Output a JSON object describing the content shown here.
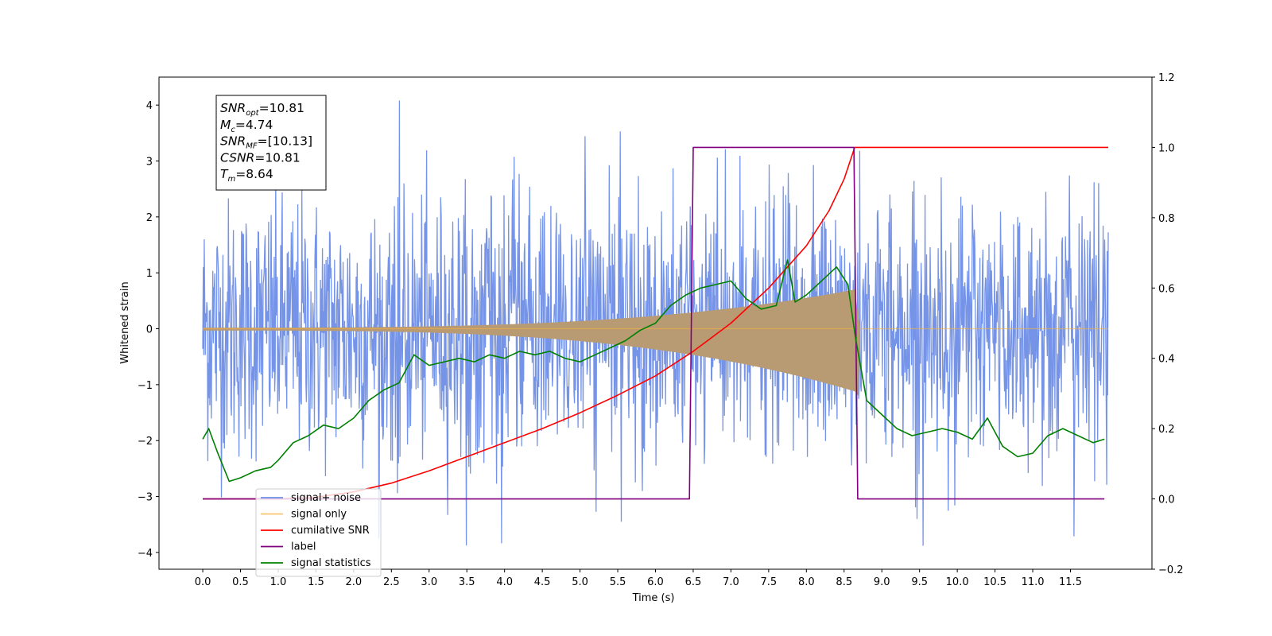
{
  "chart_data": {
    "type": "line",
    "xlabel": "Time (s)",
    "ylabel": "Whitened strain",
    "y2label": "",
    "xlim": [
      -0.58,
      12.58
    ],
    "ylim": [
      -4.3,
      4.5
    ],
    "y2lim": [
      -0.2,
      1.2
    ],
    "xticks": [
      0.0,
      0.5,
      1.0,
      1.5,
      2.0,
      2.5,
      3.0,
      3.5,
      4.0,
      4.5,
      5.0,
      5.5,
      6.0,
      6.5,
      7.0,
      7.5,
      8.0,
      8.5,
      9.0,
      9.5,
      10.0,
      10.5,
      11.0,
      11.5
    ],
    "xtick_labels": [
      "0.0",
      "0.5",
      "1.0",
      "1.5",
      "2.0",
      "2.5",
      "3.0",
      "3.5",
      "4.0",
      "4.5",
      "5.0",
      "5.5",
      "6.0",
      "6.5",
      "7.0",
      "7.5",
      "8.0",
      "8.5",
      "9.0",
      "9.5",
      "10.0",
      "10.5",
      "11.0",
      "11.5"
    ],
    "yticks": [
      -4,
      -3,
      -2,
      -1,
      0,
      1,
      2,
      3,
      4
    ],
    "ytick_labels": [
      "−4",
      "−3",
      "−2",
      "−1",
      "0",
      "1",
      "2",
      "3",
      "4"
    ],
    "y2ticks": [
      -0.2,
      0.0,
      0.2,
      0.4,
      0.6,
      0.8,
      1.0,
      1.2
    ],
    "y2tick_labels": [
      "−0.2",
      "0.0",
      "0.2",
      "0.4",
      "0.6",
      "0.8",
      "1.0",
      "1.2"
    ],
    "grid": false,
    "legend_position": "lower-left",
    "annotation": {
      "lines": [
        {
          "var": "SNR",
          "sub": "opt",
          "val": "=10.81"
        },
        {
          "var": "M",
          "sub": "c",
          "val": "=4.74"
        },
        {
          "var": "SNR",
          "sub": "MF",
          "val": "=[10.13]"
        },
        {
          "var": "CSNR",
          "sub": "",
          "val": "=10.81"
        },
        {
          "var": "T",
          "sub": "m",
          "val": "=8.64"
        }
      ]
    },
    "series": [
      {
        "name": "signal+ noise",
        "color": "#6f8ee6",
        "axis": "left",
        "kind": "noise",
        "x_start": 0.0,
        "x_end": 12.0,
        "spread": 1.15,
        "peak_amplitude": 4.1,
        "min_value": -3.9
      },
      {
        "name": "signal only",
        "color": "#f5b041",
        "axis": "left",
        "kind": "chirp",
        "x_start": 0.0,
        "x_merger": 8.64,
        "x_end": 12.0,
        "start_amplitude": 0.02,
        "peak_amplitude": 0.7,
        "ringdown_min": -1.2
      },
      {
        "name": "cumilative SNR",
        "color": "#ff0000",
        "axis": "right",
        "x": [
          0.0,
          0.5,
          1.0,
          1.5,
          2.0,
          2.5,
          3.0,
          3.5,
          4.0,
          4.5,
          5.0,
          5.5,
          6.0,
          6.5,
          7.0,
          7.5,
          8.0,
          8.3,
          8.5,
          8.64,
          12.0
        ],
        "y": [
          0.0,
          0.0,
          0.0,
          0.005,
          0.02,
          0.045,
          0.08,
          0.12,
          0.16,
          0.2,
          0.245,
          0.295,
          0.35,
          0.42,
          0.5,
          0.6,
          0.72,
          0.82,
          0.91,
          1.0,
          1.0
        ]
      },
      {
        "name": "label",
        "color": "#800080",
        "axis": "right",
        "x": [
          0.0,
          6.45,
          6.5,
          8.63,
          8.68,
          11.95
        ],
        "y": [
          0.0,
          0.0,
          1.0,
          1.0,
          0.0,
          0.0
        ]
      },
      {
        "name": "signal statistics",
        "color": "#008000",
        "axis": "right",
        "x": [
          0.0,
          0.08,
          0.2,
          0.35,
          0.5,
          0.7,
          0.9,
          1.0,
          1.2,
          1.4,
          1.6,
          1.8,
          2.0,
          2.2,
          2.4,
          2.6,
          2.8,
          3.0,
          3.2,
          3.4,
          3.6,
          3.8,
          4.0,
          4.2,
          4.4,
          4.6,
          4.8,
          5.0,
          5.2,
          5.4,
          5.6,
          5.8,
          6.0,
          6.2,
          6.4,
          6.6,
          6.8,
          7.0,
          7.2,
          7.4,
          7.6,
          7.75,
          7.85,
          8.0,
          8.2,
          8.4,
          8.55,
          8.65,
          8.8,
          9.0,
          9.2,
          9.4,
          9.6,
          9.8,
          10.0,
          10.2,
          10.4,
          10.6,
          10.8,
          11.0,
          11.2,
          11.4,
          11.6,
          11.8,
          11.95
        ],
        "y": [
          0.17,
          0.2,
          0.13,
          0.05,
          0.06,
          0.08,
          0.09,
          0.11,
          0.16,
          0.18,
          0.21,
          0.2,
          0.23,
          0.28,
          0.31,
          0.33,
          0.41,
          0.38,
          0.39,
          0.4,
          0.39,
          0.41,
          0.4,
          0.42,
          0.41,
          0.42,
          0.4,
          0.39,
          0.41,
          0.43,
          0.45,
          0.48,
          0.5,
          0.55,
          0.58,
          0.6,
          0.61,
          0.62,
          0.57,
          0.54,
          0.55,
          0.68,
          0.56,
          0.58,
          0.62,
          0.66,
          0.61,
          0.46,
          0.28,
          0.24,
          0.2,
          0.18,
          0.19,
          0.2,
          0.19,
          0.17,
          0.23,
          0.15,
          0.12,
          0.13,
          0.18,
          0.2,
          0.18,
          0.16,
          0.17
        ]
      }
    ]
  }
}
